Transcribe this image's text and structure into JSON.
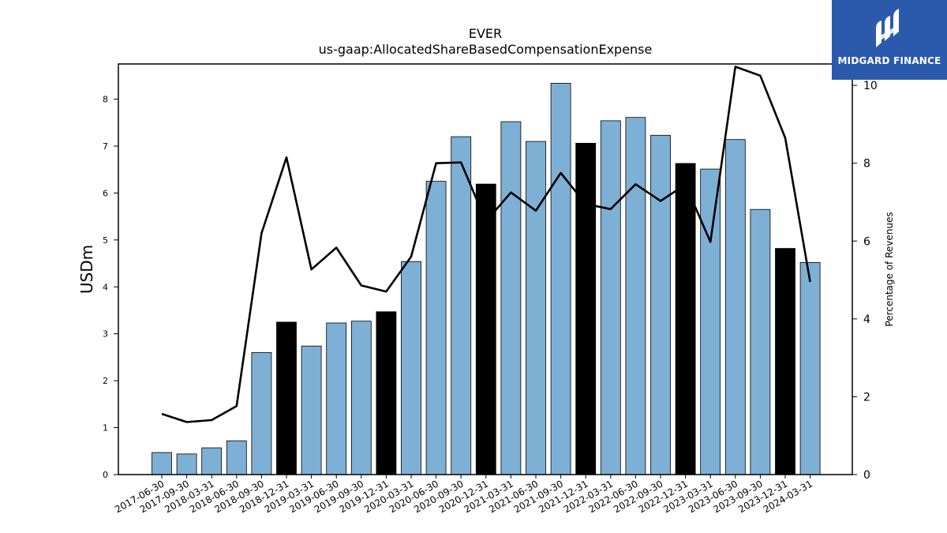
{
  "brand": {
    "name": "MIDGARD FINANCE",
    "color": "#2b5aad"
  },
  "chart_data": {
    "type": "bar",
    "title": "EVER",
    "subtitle": "us-gaap:AllocatedShareBasedCompensationExpense",
    "ylabel": "USDm",
    "y2label": "Percentage of Revenues",
    "ylim": [
      0,
      8.75
    ],
    "y2lim": [
      0,
      10.55
    ],
    "yticks": [
      0,
      1,
      2,
      3,
      4,
      5,
      6,
      7,
      8
    ],
    "y2ticks": [
      0,
      2,
      4,
      6,
      8,
      10
    ],
    "grid": false,
    "categories": [
      "2017-06-30",
      "2017-09-30",
      "2018-03-31",
      "2018-06-30",
      "2018-09-30",
      "2018-12-31",
      "2019-03-31",
      "2019-06-30",
      "2019-09-30",
      "2019-12-31",
      "2020-03-31",
      "2020-06-30",
      "2020-09-30",
      "2020-12-31",
      "2021-03-31",
      "2021-06-30",
      "2021-09-30",
      "2021-12-31",
      "2022-03-31",
      "2022-06-30",
      "2022-09-30",
      "2022-12-31",
      "2023-03-31",
      "2023-06-30",
      "2023-09-30",
      "2023-12-31",
      "2024-03-31"
    ],
    "series": [
      {
        "type": "bar",
        "values": [
          0.47,
          0.44,
          0.57,
          0.72,
          2.6,
          3.25,
          2.74,
          3.23,
          3.27,
          3.47,
          4.54,
          6.25,
          7.2,
          6.19,
          7.52,
          7.1,
          8.34,
          7.06,
          7.54,
          7.61,
          7.23,
          6.63,
          6.51,
          7.14,
          5.65,
          4.82,
          4.52
        ],
        "highlight": [
          false,
          false,
          false,
          false,
          false,
          true,
          false,
          false,
          false,
          true,
          false,
          false,
          false,
          true,
          false,
          false,
          false,
          true,
          false,
          false,
          false,
          true,
          false,
          false,
          false,
          true,
          false
        ],
        "color": "#7eb0d5",
        "highlight_color": "#000000"
      },
      {
        "type": "line",
        "axis": "secondary",
        "values": [
          1.56,
          1.35,
          1.4,
          1.76,
          6.2,
          8.15,
          5.27,
          5.83,
          4.86,
          4.7,
          5.6,
          8.0,
          8.02,
          6.5,
          7.25,
          6.78,
          7.75,
          6.95,
          6.82,
          7.46,
          7.03,
          7.45,
          5.98,
          10.48,
          10.25,
          8.65,
          4.95
        ],
        "color": "#000000"
      }
    ]
  }
}
